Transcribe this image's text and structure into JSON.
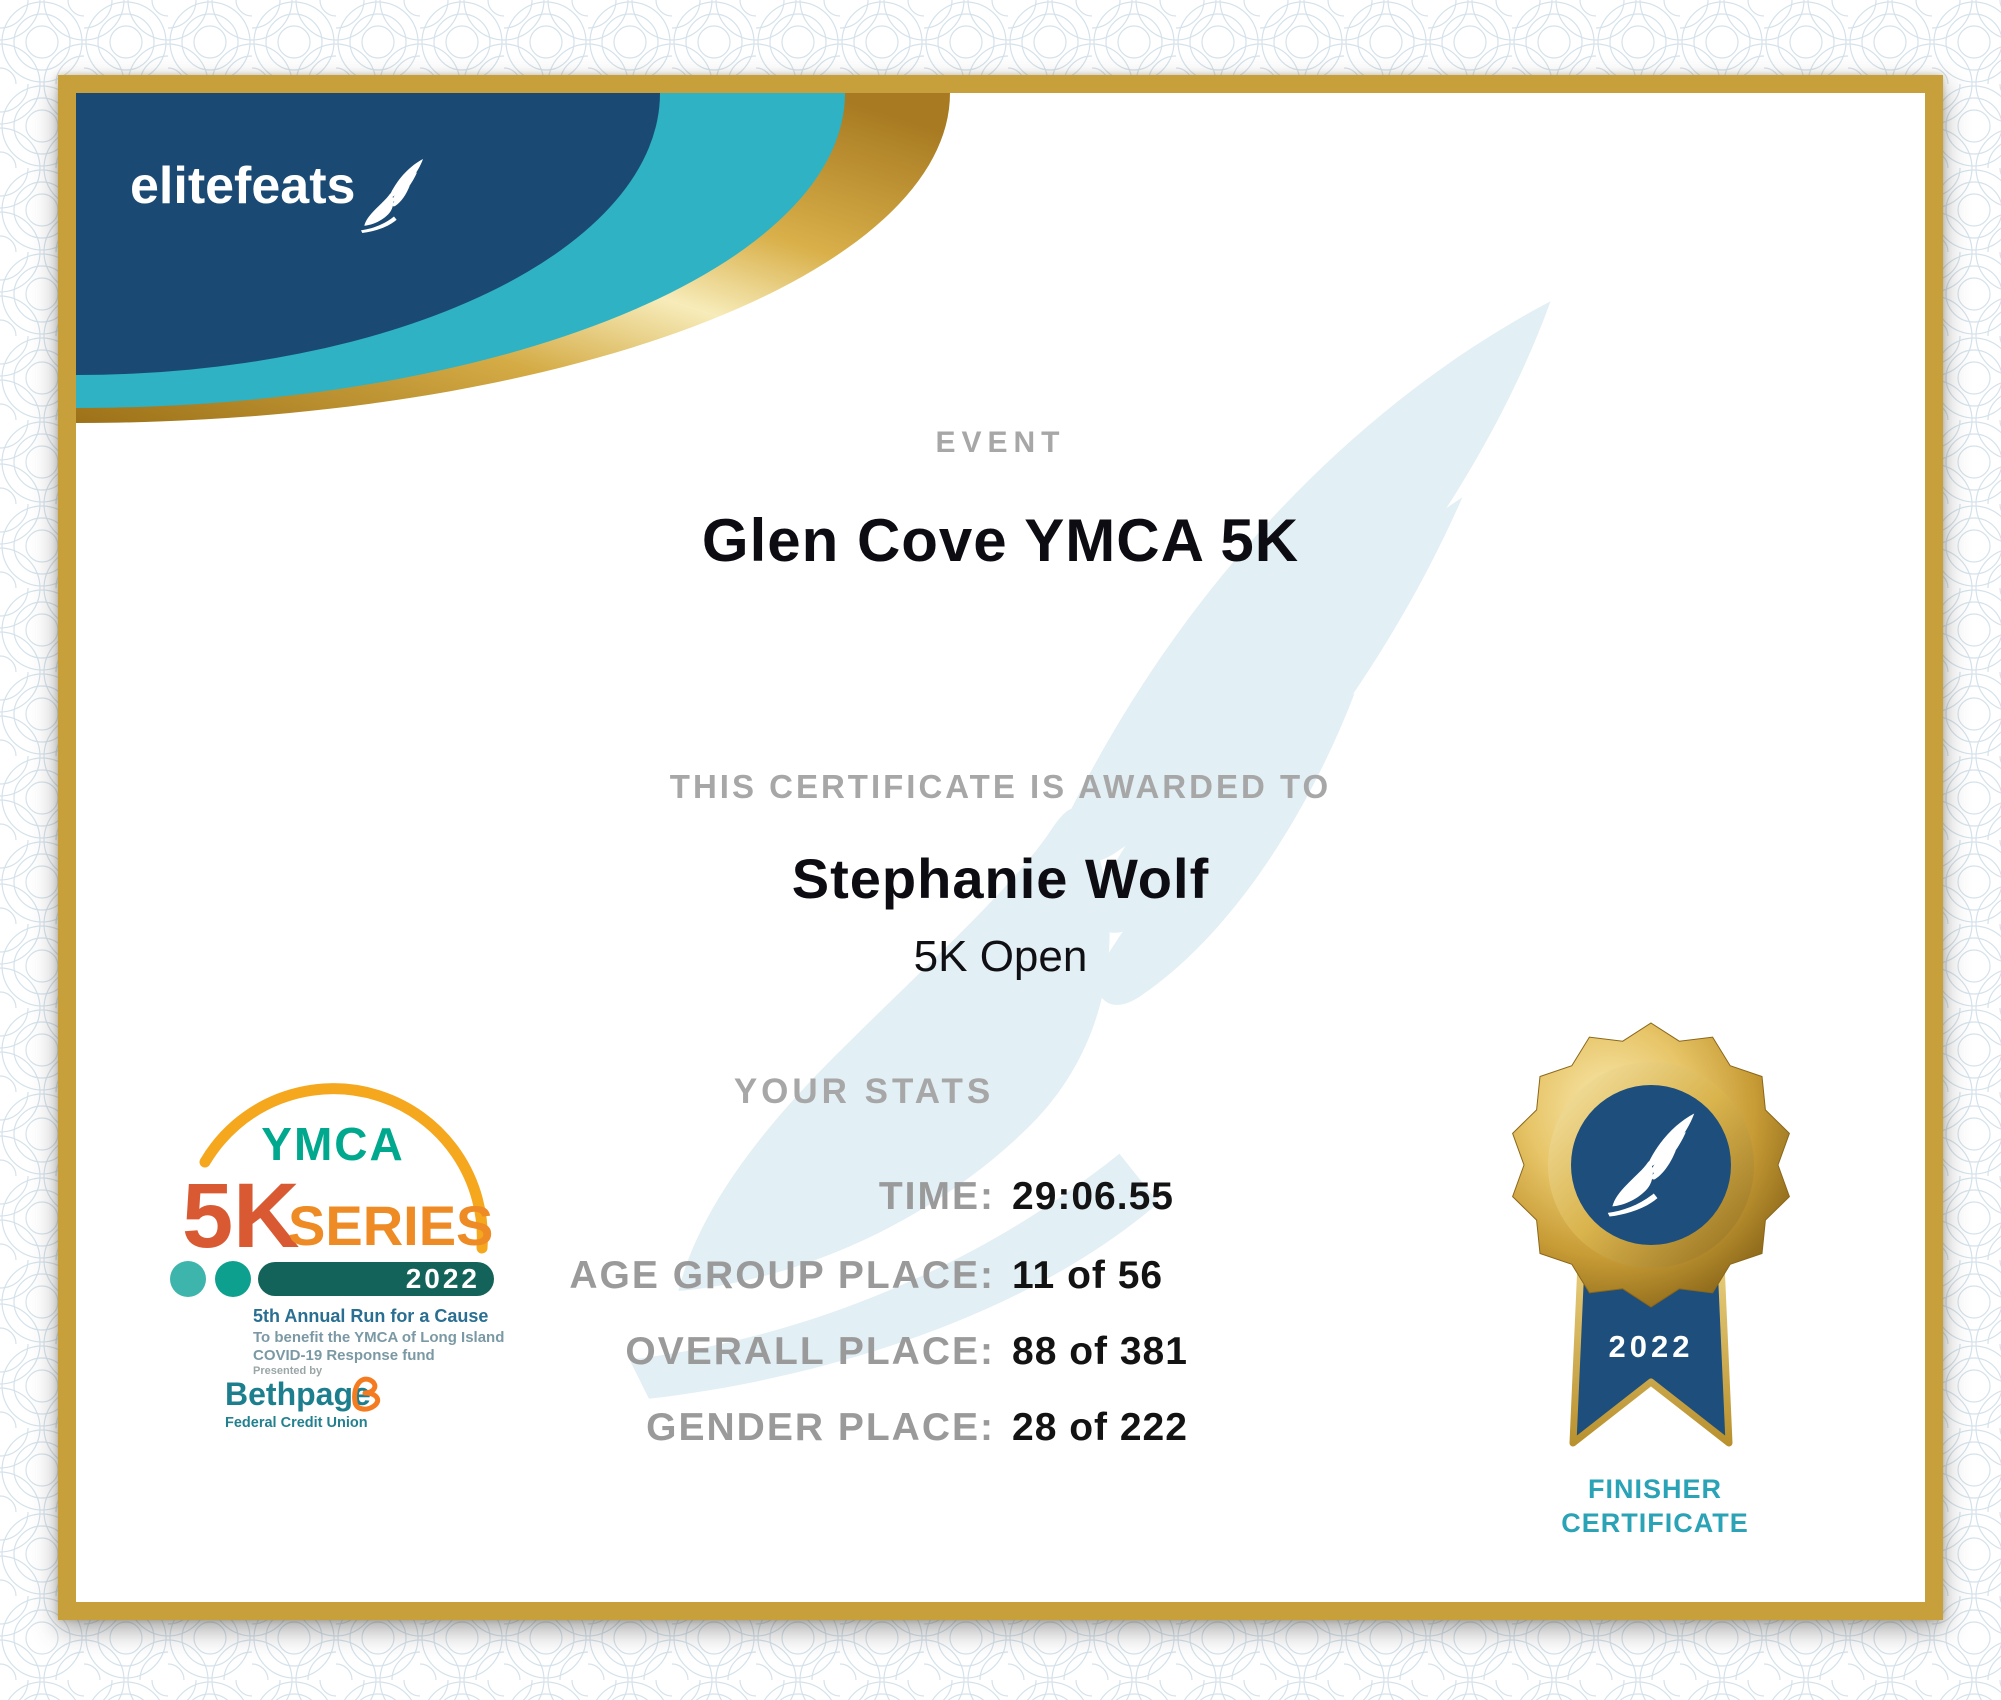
{
  "colors": {
    "navy": "#1a4a73",
    "teal": "#2fb2c3",
    "frame_gold": "#c7a03c",
    "medal_navy": "#1d4e7c",
    "label_gray": "#a7a7a7",
    "finisher_teal": "#2ba3b7",
    "watermark_blue": "#e2eff5"
  },
  "brand": {
    "logo_text": "elitefeats"
  },
  "event": {
    "label": "EVENT",
    "title": "Glen Cove YMCA 5K"
  },
  "award": {
    "label": "THIS CERTIFICATE IS AWARDED TO",
    "recipient": "Stephanie Wolf",
    "division": "5K Open"
  },
  "stats": {
    "heading": "YOUR STATS",
    "rows": [
      {
        "label": "TIME:",
        "value": "29:06.55"
      },
      {
        "label": "AGE GROUP PLACE:",
        "value": "11 of 56"
      },
      {
        "label": "OVERALL PLACE:",
        "value": "88 of 381"
      },
      {
        "label": "GENDER PLACE:",
        "value": "28 of 222"
      }
    ]
  },
  "series_logo": {
    "org": "YMCA",
    "distance": "5K",
    "series_word": "SERIES",
    "year": "2022",
    "tagline": "5th Annual Run for a Cause",
    "benefit_line1": "To benefit the YMCA of Long Island",
    "benefit_line2": "COVID-19 Response fund",
    "presented_by": "Presented by",
    "sponsor_name": "Bethpage",
    "sponsor_subtitle": "Federal Credit Union"
  },
  "medal": {
    "year": "2022",
    "caption_line1": "FINISHER",
    "caption_line2": "CERTIFICATE"
  }
}
